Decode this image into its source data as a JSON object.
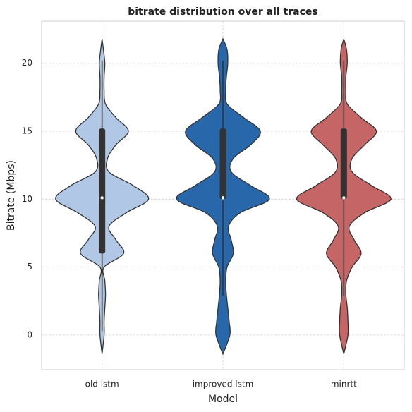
{
  "chart_data": {
    "type": "violin",
    "title": "bitrate distribution over all traces",
    "x_label": "Model",
    "y_label": "Bitrate (Mbps)",
    "categories": [
      "old lstm",
      "improved lstm",
      "minrtt"
    ],
    "ylim": [
      -2.55,
      23.1
    ],
    "yticks": [
      0,
      5,
      10,
      15,
      20
    ],
    "grid": true,
    "violin_y": [
      -1.4,
      0,
      1,
      2,
      3,
      4,
      5,
      6,
      7,
      8,
      9,
      10,
      11,
      12,
      13,
      14,
      15,
      16,
      17,
      18,
      19,
      20,
      21,
      21.8
    ],
    "series": [
      {
        "name": "old lstm",
        "color": "#b0c7e6",
        "density": [
          0,
          3,
          3,
          4,
          5,
          4,
          3,
          31,
          20,
          10,
          35,
          67,
          45,
          10,
          8,
          20,
          38,
          20,
          5,
          3,
          3,
          4,
          2,
          0
        ],
        "whisker_low": 0.3,
        "q1": 6,
        "median": 10.1,
        "q3": 15.2,
        "whisker_high": 20.2
      },
      {
        "name": "improved lstm",
        "color": "#2767aa",
        "density": [
          0,
          10,
          9,
          7,
          5,
          4,
          6,
          15,
          12,
          8,
          25,
          67,
          40,
          12,
          15,
          40,
          54,
          30,
          6,
          4,
          5,
          7,
          6,
          0
        ],
        "whisker_low": 2.9,
        "q1": 10,
        "median": 10.1,
        "q3": 15.2,
        "whisker_high": 20.2
      },
      {
        "name": "minrtt",
        "color": "#c56566",
        "density": [
          0,
          6,
          6,
          5,
          3,
          4,
          12,
          25,
          15,
          8,
          30,
          68,
          40,
          12,
          12,
          30,
          47,
          25,
          5,
          3,
          3,
          5,
          4,
          0
        ],
        "whisker_low": 2.9,
        "q1": 10,
        "median": 10.1,
        "q3": 15.2,
        "whisker_high": 20.2
      }
    ]
  }
}
